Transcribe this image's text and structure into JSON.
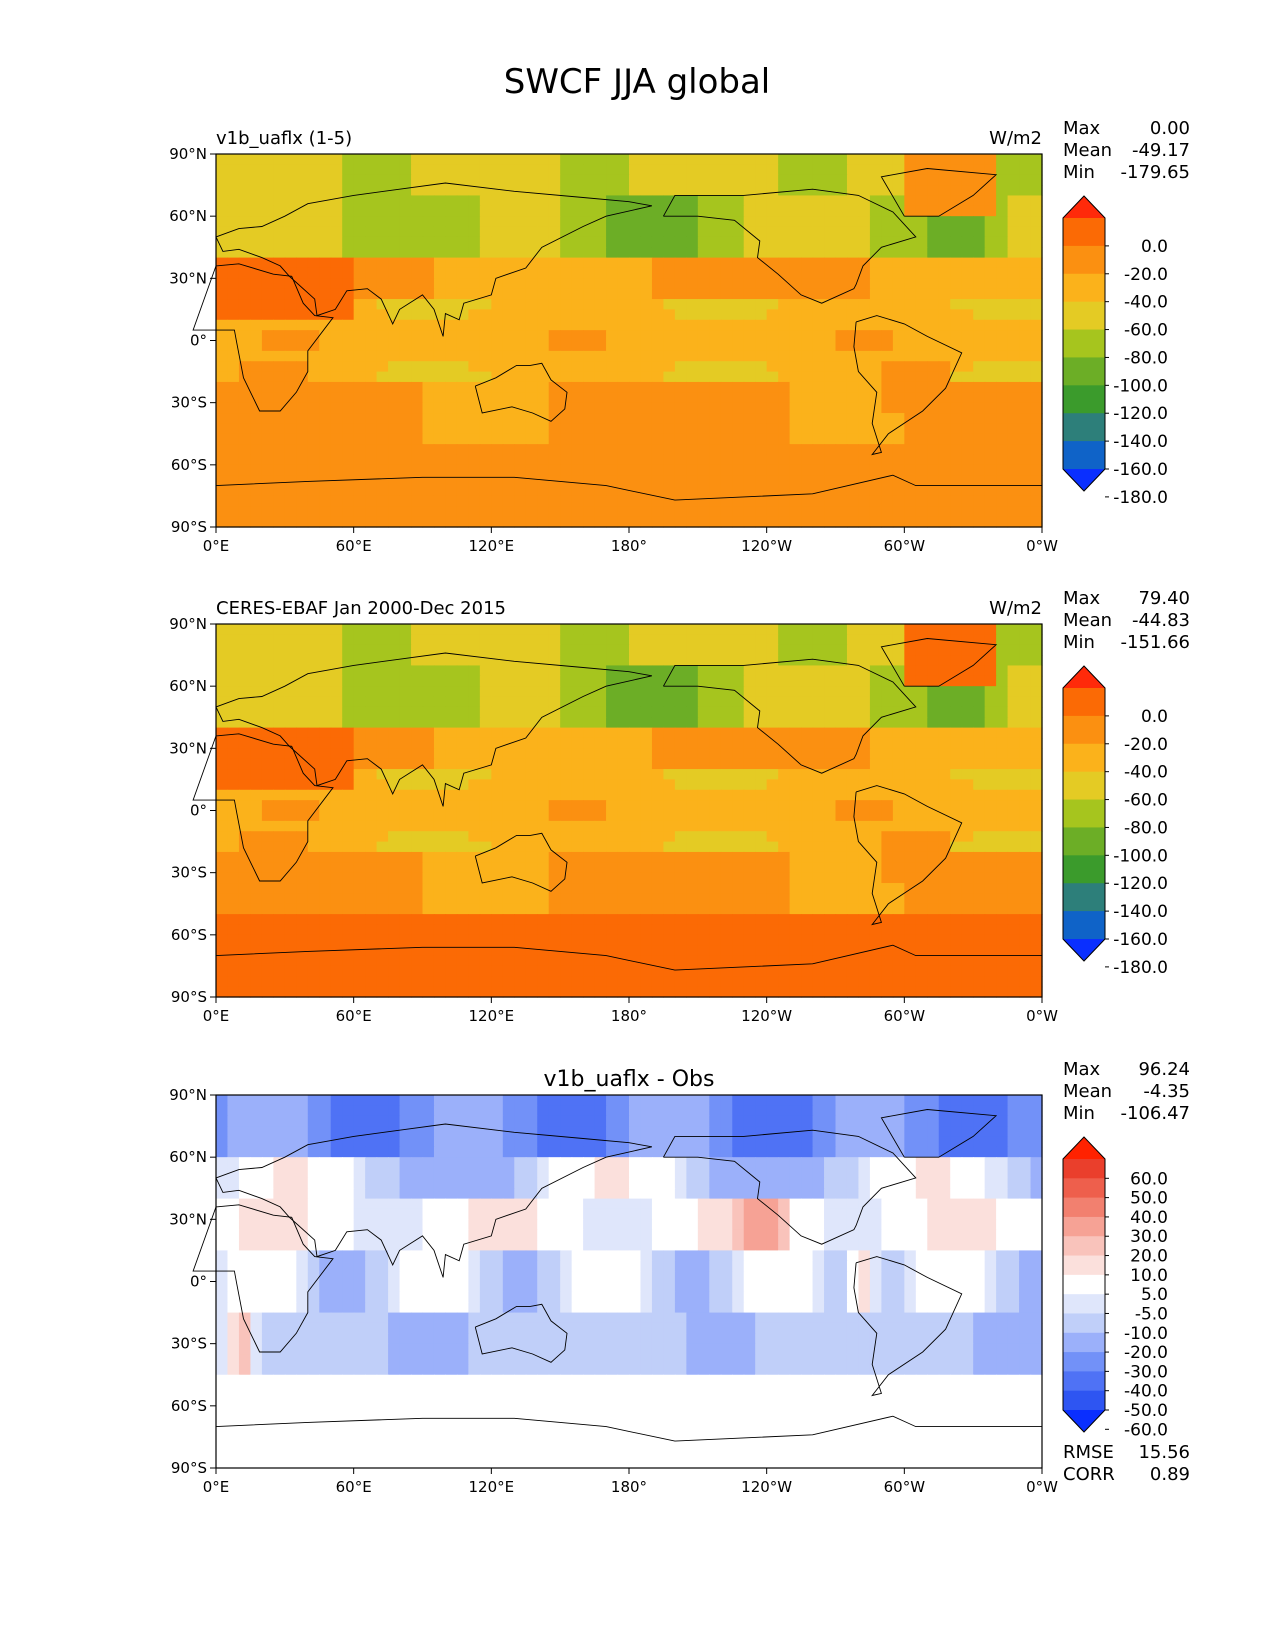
{
  "figure": {
    "title": "SWCF JJA global"
  },
  "colors": {
    "model_levels": [
      "#0a2fff",
      "#0f63c8",
      "#2d7f7a",
      "#3b9b2c",
      "#6cae26",
      "#a6c51e",
      "#e4cb24",
      "#fbb21b",
      "#fb9011",
      "#fb6a05",
      "#ff2a0a"
    ],
    "diff_levels": [
      "#0a2fff",
      "#2e55f2",
      "#4f72f5",
      "#7291f8",
      "#9bb0fa",
      "#c0cff9",
      "#dfe6fb",
      "#ffffff",
      "#fbe0dc",
      "#f9c3bb",
      "#f6a295",
      "#f2806f",
      "#ee5f4c",
      "#ea3f2c",
      "#ff2200"
    ],
    "coast": "#000000"
  },
  "chart_data": [
    {
      "type": "heatmap",
      "title": "v1b_uaflx (1-5)",
      "units": "W/m2",
      "stats": [
        {
          "label": "Max",
          "value": "0.00"
        },
        {
          "label": "Mean",
          "value": "-49.17"
        },
        {
          "label": "Min",
          "value": "-179.65"
        }
      ],
      "xticks": [
        "0°E",
        "60°E",
        "120°E",
        "180°",
        "120°W",
        "60°W",
        "0°W"
      ],
      "yticks": [
        "90°N",
        "60°N",
        "30°N",
        "0°",
        "30°S",
        "60°S",
        "90°S"
      ],
      "xlim": [
        0,
        360
      ],
      "ylim": [
        -90,
        90
      ],
      "colorbar": {
        "levels": [
          "0.0",
          "-20.0",
          "-40.0",
          "-60.0",
          "-80.0",
          "-100.0",
          "-120.0",
          "-140.0",
          "-160.0",
          "-180.0"
        ],
        "extend": "both"
      }
    },
    {
      "type": "heatmap",
      "title": "CERES-EBAF Jan 2000-Dec 2015",
      "units": "W/m2",
      "stats": [
        {
          "label": "Max",
          "value": "79.40"
        },
        {
          "label": "Mean",
          "value": "-44.83"
        },
        {
          "label": "Min",
          "value": "-151.66"
        }
      ],
      "xticks": [
        "0°E",
        "60°E",
        "120°E",
        "180°",
        "120°W",
        "60°W",
        "0°W"
      ],
      "yticks": [
        "90°N",
        "60°N",
        "30°N",
        "0°",
        "30°S",
        "60°S",
        "90°S"
      ],
      "xlim": [
        0,
        360
      ],
      "ylim": [
        -90,
        90
      ],
      "colorbar": {
        "levels": [
          "0.0",
          "-20.0",
          "-40.0",
          "-60.0",
          "-80.0",
          "-100.0",
          "-120.0",
          "-140.0",
          "-160.0",
          "-180.0"
        ],
        "extend": "both"
      }
    },
    {
      "type": "heatmap",
      "title": "v1b_uaflx - Obs",
      "units": "",
      "stats": [
        {
          "label": "Max",
          "value": "96.24"
        },
        {
          "label": "Mean",
          "value": "-4.35"
        },
        {
          "label": "Min",
          "value": "-106.47"
        }
      ],
      "xticks": [
        "0°E",
        "60°E",
        "120°E",
        "180°",
        "120°W",
        "60°W",
        "0°W"
      ],
      "yticks": [
        "90°N",
        "60°N",
        "30°N",
        "0°",
        "30°S",
        "60°S",
        "90°S"
      ],
      "xlim": [
        0,
        360
      ],
      "ylim": [
        -90,
        90
      ],
      "colorbar": {
        "levels": [
          "60.0",
          "50.0",
          "40.0",
          "30.0",
          "20.0",
          "10.0",
          "5.0",
          "-5.0",
          "-10.0",
          "-20.0",
          "-30.0",
          "-40.0",
          "-50.0",
          "-60.0"
        ],
        "extend": "both"
      },
      "metrics": [
        {
          "label": "RMSE",
          "value": "15.56"
        },
        {
          "label": "CORR",
          "value": "0.89"
        }
      ]
    }
  ]
}
